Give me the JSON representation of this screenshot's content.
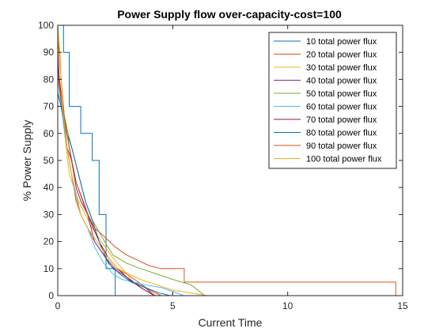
{
  "chart_data": {
    "type": "line",
    "title": "Power Supply flow over-capacity-cost=100",
    "xlabel": "Current Time",
    "ylabel": "% Power Supply",
    "xlim": [
      0,
      15
    ],
    "ylim": [
      0,
      100
    ],
    "xticks": [
      0,
      5,
      10,
      15
    ],
    "yticks": [
      0,
      10,
      20,
      30,
      40,
      50,
      60,
      70,
      80,
      90,
      100
    ],
    "grid": false,
    "legend_position": "top-right",
    "series": [
      {
        "name": "10 total power flux",
        "color": "#0072bd",
        "x": [
          0,
          0.25,
          0.25,
          0.5,
          0.5,
          1.0,
          1.0,
          1.5,
          1.5,
          1.8,
          1.8,
          2.1,
          2.1,
          2.5,
          2.5,
          3.0
        ],
        "y": [
          100,
          100,
          90,
          90,
          70,
          70,
          60,
          60,
          50,
          50,
          30,
          30,
          10,
          10,
          0,
          0
        ]
      },
      {
        "name": "20 total power flux",
        "color": "#d95319",
        "x": [
          0,
          0.1,
          0.2,
          0.3,
          0.4,
          0.6,
          0.8,
          1.0,
          1.3,
          1.6,
          2.0,
          2.5,
          3.0,
          3.5,
          4.0,
          4.5
        ],
        "y": [
          95,
          85,
          75,
          65,
          55,
          45,
          35,
          30,
          25,
          20,
          15,
          10,
          8,
          5,
          2,
          0
        ]
      },
      {
        "name": "30 total power flux",
        "color": "#edb120",
        "x": [
          0,
          0.15,
          0.3,
          0.5,
          0.7,
          0.9,
          1.2,
          1.5,
          1.9,
          2.3,
          2.8,
          3.3,
          3.8,
          4.3
        ],
        "y": [
          100,
          80,
          60,
          45,
          40,
          35,
          30,
          25,
          20,
          15,
          10,
          5,
          2,
          0
        ]
      },
      {
        "name": "40 total power flux",
        "color": "#7e2f8e",
        "x": [
          0,
          0.1,
          0.25,
          0.4,
          0.6,
          0.8,
          1.0,
          1.3,
          1.6,
          2.0,
          2.4,
          2.8,
          3.3,
          3.8,
          4.2
        ],
        "y": [
          90,
          75,
          65,
          55,
          50,
          40,
          35,
          30,
          20,
          15,
          10,
          8,
          5,
          3,
          0
        ]
      },
      {
        "name": "50 total power flux",
        "color": "#77ac30",
        "x": [
          0,
          0.2,
          0.4,
          0.6,
          0.9,
          1.2,
          1.5,
          1.9,
          2.4,
          3.0,
          3.6,
          4.3,
          5.0,
          5.8,
          6.4
        ],
        "y": [
          85,
          70,
          62,
          55,
          45,
          35,
          28,
          22,
          15,
          12,
          10,
          8,
          6,
          4,
          0
        ]
      },
      {
        "name": "60 total power flux",
        "color": "#4dbeee",
        "x": [
          0,
          0.15,
          0.3,
          0.5,
          0.7,
          1.0,
          1.3,
          1.6,
          2.0,
          2.4,
          2.8,
          3.3,
          3.8,
          4.5,
          5.5
        ],
        "y": [
          80,
          70,
          60,
          50,
          40,
          30,
          25,
          18,
          12,
          8,
          6,
          5,
          4,
          3,
          0
        ]
      },
      {
        "name": "70 total power flux",
        "color": "#a2142f",
        "x": [
          0,
          0.1,
          0.2,
          0.4,
          0.6,
          0.8,
          1.1,
          1.4,
          1.8,
          2.2,
          2.6,
          3.1,
          3.6,
          4.2
        ],
        "y": [
          85,
          78,
          70,
          60,
          50,
          42,
          35,
          28,
          20,
          14,
          10,
          6,
          3,
          0
        ]
      },
      {
        "name": "80 total power flux",
        "color": "#0072bd",
        "x": [
          0,
          0.2,
          0.4,
          0.6,
          0.9,
          1.2,
          1.5,
          1.8,
          2.2,
          2.7,
          3.2,
          3.8,
          4.4,
          4.9
        ],
        "y": [
          75,
          68,
          60,
          55,
          45,
          35,
          28,
          20,
          12,
          8,
          5,
          3,
          1,
          0
        ]
      },
      {
        "name": "90 total power flux",
        "color": "#d95319",
        "x": [
          0,
          0.2,
          0.5,
          0.8,
          1.2,
          1.6,
          2.0,
          2.5,
          3.0,
          3.5,
          4.0,
          4.5,
          5.0,
          5.5,
          5.5,
          14.7,
          14.7
        ],
        "y": [
          82,
          70,
          55,
          42,
          32,
          25,
          22,
          18,
          15,
          13,
          11,
          10,
          10,
          10,
          5,
          5,
          0
        ]
      },
      {
        "name": "100 total power flux",
        "color": "#edb120",
        "x": [
          0,
          0.1,
          0.2,
          0.4,
          0.6,
          0.8,
          1.0,
          1.3,
          1.7,
          2.1,
          2.6,
          3.1,
          3.6,
          4.3,
          5.0,
          5.8,
          6.5
        ],
        "y": [
          100,
          90,
          70,
          55,
          45,
          38,
          30,
          25,
          20,
          15,
          10,
          8,
          6,
          4,
          2,
          1,
          0
        ]
      }
    ]
  }
}
